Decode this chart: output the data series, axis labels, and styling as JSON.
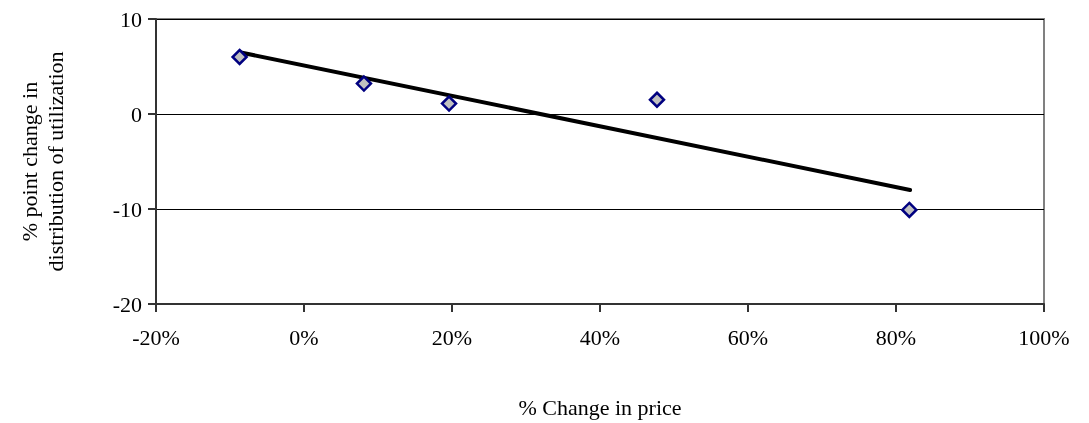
{
  "chart_data": {
    "type": "scatter",
    "xlabel": "% Change in price",
    "ylabel": "% point change in\ndistribution of utilization",
    "series": [
      {
        "color": "#c0c0c0",
        "x": [
          -8.7,
          8.1,
          19.6,
          47.7,
          81.8
        ],
        "values": [
          6.0,
          3.2,
          1.1,
          1.5,
          -10.1
        ]
      },
      {
        "type": "line",
        "color": "#000000",
        "marker": "none",
        "x": [
          -8.7,
          81.9
        ],
        "values": [
          6.5,
          -8.0
        ]
      }
    ],
    "marker": "diamond",
    "xlim": [
      -20,
      100
    ],
    "xticks": [
      {
        "value": -20,
        "label": "-20%"
      },
      {
        "value": 0,
        "label": "0%"
      },
      {
        "value": 20,
        "label": "20%"
      },
      {
        "value": 40,
        "label": "40%"
      },
      {
        "value": 60,
        "label": "60%"
      },
      {
        "value": 80,
        "label": "80%"
      },
      {
        "value": 100,
        "label": "100%"
      }
    ],
    "ylim": [
      -20,
      10
    ],
    "yticks": [
      -20,
      -10,
      0,
      10
    ],
    "grid": "y"
  }
}
